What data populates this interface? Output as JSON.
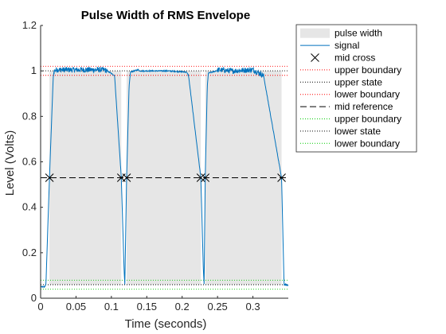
{
  "chart_data": {
    "type": "line",
    "title": "Pulse Width of RMS Envelope",
    "xlabel": "Time (seconds)",
    "ylabel": "Level (Volts)",
    "xlim": [
      0,
      0.35
    ],
    "ylim": [
      0,
      1.2
    ],
    "xticks": [
      "0",
      "0.05",
      "0.1",
      "0.15",
      "0.2",
      "0.25",
      "0.3"
    ],
    "xtick_values": [
      0,
      0.05,
      0.1,
      0.15,
      0.2,
      0.25,
      0.3
    ],
    "yticks": [
      "0",
      "0.2",
      "0.4",
      "0.6",
      "0.8",
      "1",
      "1.2"
    ],
    "ytick_values": [
      0,
      0.2,
      0.4,
      0.6,
      0.8,
      1.0,
      1.2
    ],
    "grid": false,
    "legend_placement": "outside-right",
    "pulse_width_intervals": [
      [
        0.0125,
        0.114
      ],
      [
        0.1215,
        0.2264
      ],
      [
        0.2326,
        0.3405
      ]
    ],
    "signal": {
      "x": [
        0,
        0.0055,
        0.0075,
        0.0125,
        0.0178,
        0.019,
        0.0225,
        0.09,
        0.094,
        0.1045,
        0.114,
        0.118,
        0.119,
        0.1215,
        0.125,
        0.127,
        0.138,
        0.14,
        0.18,
        0.206,
        0.209,
        0.2264,
        0.23,
        0.231,
        0.2326,
        0.2355,
        0.237,
        0.248,
        0.25,
        0.27,
        0.3,
        0.315,
        0.3405,
        0.344,
        0.346,
        0.35
      ],
      "y": [
        0.05,
        0.05,
        0.06,
        0.53,
        0.97,
        1.0,
        1.005,
        1.005,
        1.0,
        0.98,
        0.53,
        0.12,
        0.06,
        0.53,
        0.93,
        0.995,
        1.005,
        1.0,
        1.0,
        0.995,
        0.98,
        0.53,
        0.12,
        0.06,
        0.53,
        0.93,
        0.99,
        1.0,
        1.005,
        1.0,
        1.005,
        0.98,
        0.53,
        0.06,
        0.06,
        0.055
      ],
      "noisy_high_segments": [
        [
          0.019,
          0.094
        ],
        [
          0.25,
          0.315
        ]
      ],
      "noise_amplitude": 0.012,
      "color": "#0072bd"
    },
    "mid_crossings": [
      {
        "x": 0.0125,
        "y": 0.53
      },
      {
        "x": 0.114,
        "y": 0.53
      },
      {
        "x": 0.1215,
        "y": 0.53
      },
      {
        "x": 0.2264,
        "y": 0.53
      },
      {
        "x": 0.2326,
        "y": 0.53
      },
      {
        "x": 0.3405,
        "y": 0.53
      }
    ],
    "reference_lines": [
      {
        "name": "upper boundary",
        "y": 1.0205,
        "style": "dotted",
        "color": "#ff0000"
      },
      {
        "name": "upper state",
        "y": 1.0005,
        "style": "dotted",
        "color": "#000000"
      },
      {
        "name": "lower boundary",
        "y": 0.9805,
        "style": "dotted",
        "color": "#ff0000"
      },
      {
        "name": "mid reference",
        "y": 0.53,
        "style": "dashed",
        "color": "#000000"
      },
      {
        "name": "upper boundary",
        "y": 0.0795,
        "style": "dotted",
        "color": "#00cc00"
      },
      {
        "name": "lower state",
        "y": 0.0595,
        "style": "dotted",
        "color": "#000000"
      },
      {
        "name": "lower boundary",
        "y": 0.0395,
        "style": "dotted",
        "color": "#00cc00"
      }
    ],
    "fill_color": "#e6e6e6",
    "legend": [
      {
        "label": "pulse width",
        "kind": "patch",
        "color": "#e6e6e6"
      },
      {
        "label": "signal",
        "kind": "line",
        "color": "#0072bd",
        "dash": "solid"
      },
      {
        "label": "mid cross",
        "kind": "marker",
        "color": "#000000"
      },
      {
        "label": "upper boundary",
        "kind": "line",
        "color": "#ff0000",
        "dash": "dotted"
      },
      {
        "label": "upper state",
        "kind": "line",
        "color": "#000000",
        "dash": "dotted"
      },
      {
        "label": "lower boundary",
        "kind": "line",
        "color": "#ff0000",
        "dash": "dotted"
      },
      {
        "label": "mid reference",
        "kind": "line",
        "color": "#000000",
        "dash": "dashed"
      },
      {
        "label": "upper boundary",
        "kind": "line",
        "color": "#00cc00",
        "dash": "dotted"
      },
      {
        "label": "lower state",
        "kind": "line",
        "color": "#000000",
        "dash": "dotted"
      },
      {
        "label": "lower boundary",
        "kind": "line",
        "color": "#00cc00",
        "dash": "dotted"
      }
    ]
  }
}
